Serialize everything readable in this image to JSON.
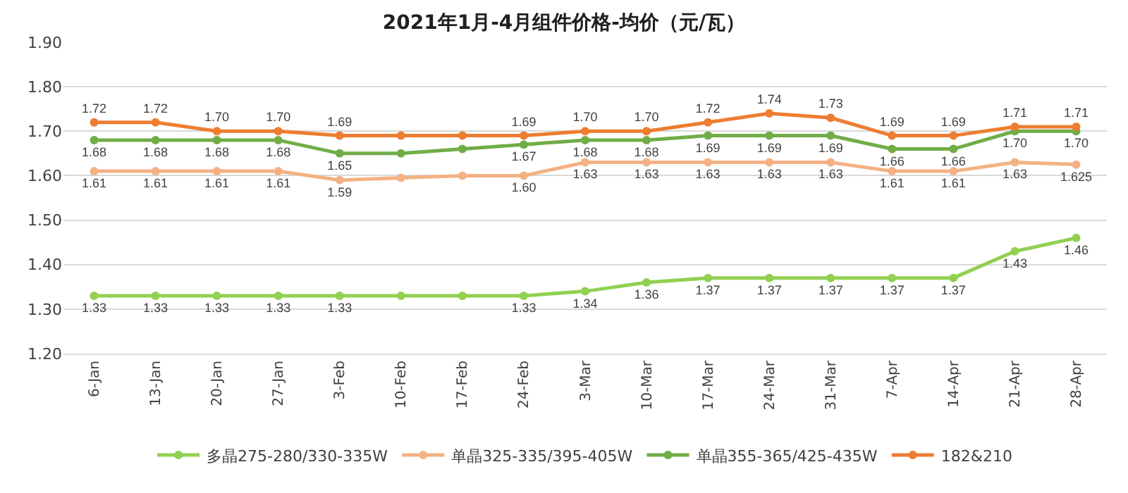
{
  "chart_data": {
    "type": "line",
    "title": "2021年1月-4月组件价格-均价（元/瓦）",
    "categories": [
      "6-Jan",
      "13-Jan",
      "20-Jan",
      "27-Jan",
      "3-Feb",
      "10-Feb",
      "17-Feb",
      "24-Feb",
      "3-Mar",
      "10-Mar",
      "17-Mar",
      "24-Mar",
      "31-Mar",
      "7-Apr",
      "14-Apr",
      "21-Apr",
      "28-Apr"
    ],
    "series": [
      {
        "name": "多晶275-280/330-335W",
        "color": "#92d050",
        "values": [
          1.33,
          1.33,
          1.33,
          1.33,
          1.33,
          1.33,
          1.33,
          1.33,
          1.34,
          1.36,
          1.37,
          1.37,
          1.37,
          1.37,
          1.37,
          1.43,
          1.46
        ],
        "value_labels": [
          "1.33",
          "1.33",
          "1.33",
          "1.33",
          "1.33",
          null,
          null,
          "1.33",
          "1.34",
          "1.36",
          "1.37",
          "1.37",
          "1.37",
          "1.37",
          "1.37",
          "1.43",
          "1.46"
        ]
      },
      {
        "name": "单晶325-335/395-405W",
        "color": "#f4b183",
        "values": [
          1.61,
          1.61,
          1.61,
          1.61,
          1.59,
          1.595,
          1.6,
          1.6,
          1.63,
          1.63,
          1.63,
          1.63,
          1.63,
          1.61,
          1.61,
          1.63,
          1.625
        ],
        "value_labels": [
          "1.61",
          "1.61",
          "1.61",
          "1.61",
          "1.59",
          null,
          null,
          "1.60",
          "1.63",
          "1.63",
          "1.63",
          "1.63",
          "1.63",
          "1.61",
          "1.61",
          "1.63",
          "1.625"
        ]
      },
      {
        "name": "单晶355-365/425-435W",
        "color": "#70ad47",
        "values": [
          1.68,
          1.68,
          1.68,
          1.68,
          1.65,
          1.65,
          1.66,
          1.67,
          1.68,
          1.68,
          1.69,
          1.69,
          1.69,
          1.66,
          1.66,
          1.7,
          1.7
        ],
        "value_labels": [
          "1.68",
          "1.68",
          "1.68",
          "1.68",
          "1.65",
          null,
          null,
          "1.67",
          "1.68",
          "1.68",
          "1.69",
          "1.69",
          "1.69",
          "1.66",
          "1.66",
          "1.70",
          "1.70"
        ]
      },
      {
        "name": "182&210",
        "color": "#ed7d31",
        "values": [
          1.72,
          1.72,
          1.7,
          1.7,
          1.69,
          1.69,
          1.69,
          1.69,
          1.7,
          1.7,
          1.72,
          1.74,
          1.73,
          1.69,
          1.69,
          1.71,
          1.71
        ],
        "value_labels": [
          "1.72",
          "1.72",
          "1.70",
          "1.70",
          "1.69",
          null,
          null,
          "1.69",
          "1.70",
          "1.70",
          "1.72",
          "1.74",
          "1.73",
          "1.69",
          "1.69",
          "1.71",
          "1.71"
        ]
      }
    ],
    "ylim": [
      1.2,
      1.9
    ],
    "yticks": [
      {
        "value": 1.2,
        "label": "1.20"
      },
      {
        "value": 1.3,
        "label": "1.30"
      },
      {
        "value": 1.4,
        "label": "1.40"
      },
      {
        "value": 1.5,
        "label": "1.50"
      },
      {
        "value": 1.6,
        "label": "1.60"
      },
      {
        "value": 1.7,
        "label": "1.70"
      },
      {
        "value": 1.8,
        "label": "1.80"
      },
      {
        "value": 1.9,
        "label": "1.90"
      }
    ],
    "grid": "y",
    "legend": "bottom",
    "marker": "circle",
    "line_style": "solid"
  }
}
